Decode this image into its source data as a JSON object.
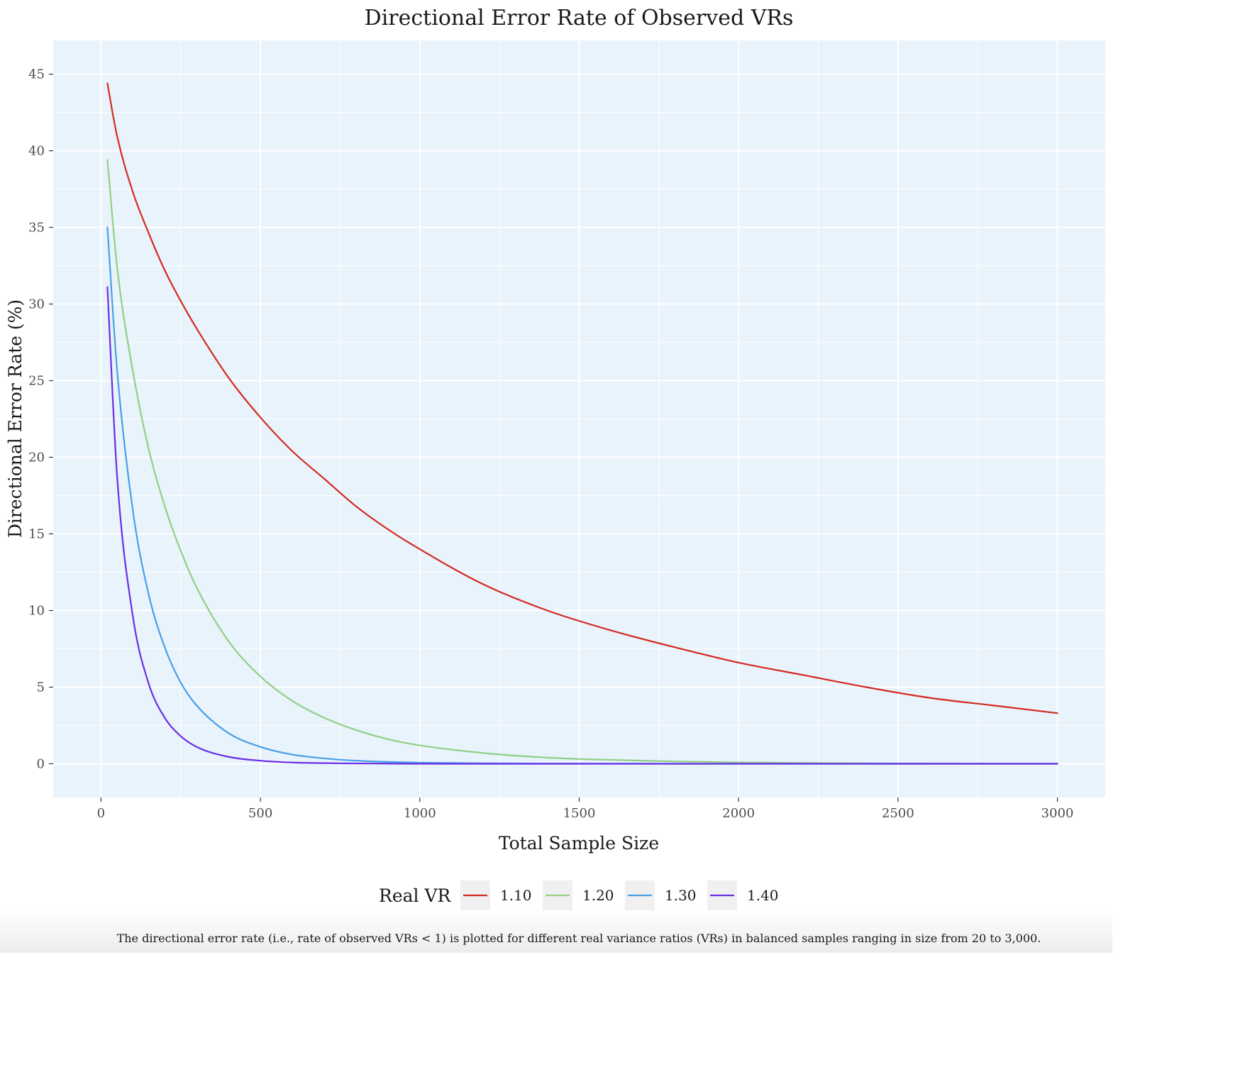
{
  "chart_data": {
    "type": "line",
    "title": "Directional Error Rate of Observed VRs",
    "xlabel": "Total Sample Size",
    "ylabel": "Directional Error Rate (%)",
    "xlim": [
      -150,
      3150
    ],
    "ylim": [
      -2.2,
      47.2
    ],
    "x_ticks": [
      0,
      500,
      1000,
      1500,
      2000,
      2500,
      3000
    ],
    "x_tick_labels": [
      "0",
      "500",
      "1000",
      "1500",
      "2000",
      "2500",
      "3000"
    ],
    "y_ticks": [
      0,
      5,
      10,
      15,
      20,
      25,
      30,
      35,
      40,
      45
    ],
    "y_tick_labels": [
      "0",
      "5",
      "10",
      "15",
      "20",
      "25",
      "30",
      "35",
      "40",
      "45"
    ],
    "grid": true,
    "legend": {
      "title": "Real VR",
      "placement": "bottom"
    },
    "x": [
      20,
      50,
      100,
      150,
      200,
      250,
      300,
      400,
      500,
      600,
      700,
      800,
      900,
      1000,
      1200,
      1400,
      1600,
      1800,
      2000,
      2200,
      2400,
      2600,
      2800,
      3000
    ],
    "series": [
      {
        "name": "1.10",
        "color": "#d42a1f",
        "values": [
          44.4,
          41.0,
          37.3,
          34.6,
          32.2,
          30.2,
          28.4,
          25.2,
          22.6,
          20.4,
          18.6,
          16.8,
          15.3,
          14.0,
          11.7,
          10.0,
          8.7,
          7.6,
          6.6,
          5.8,
          5.0,
          4.3,
          3.8,
          3.3
        ]
      },
      {
        "name": "1.20",
        "color": "#92cf84",
        "values": [
          39.4,
          32.5,
          25.6,
          20.5,
          16.8,
          13.9,
          11.5,
          8.0,
          5.7,
          4.1,
          3.0,
          2.2,
          1.6,
          1.2,
          0.7,
          0.4,
          0.25,
          0.15,
          0.09,
          0.05,
          0.03,
          0.02,
          0.01,
          0.01
        ]
      },
      {
        "name": "1.30",
        "color": "#4a9ee6",
        "values": [
          35.0,
          25.8,
          16.5,
          11.0,
          7.6,
          5.3,
          3.8,
          2.0,
          1.1,
          0.6,
          0.35,
          0.2,
          0.12,
          0.07,
          0.03,
          0.01,
          0.005,
          0,
          0,
          0,
          0,
          0,
          0,
          0
        ]
      },
      {
        "name": "1.40",
        "color": "#6a2ee6",
        "values": [
          31.1,
          18.9,
          9.6,
          5.2,
          3.0,
          1.8,
          1.1,
          0.45,
          0.2,
          0.08,
          0.04,
          0.02,
          0.01,
          0,
          0,
          0,
          0,
          0,
          0,
          0,
          0,
          0,
          0,
          0
        ]
      }
    ],
    "caption": "The directional error rate (i.e., rate of observed VRs < 1) is plotted for different real variance ratios (VRs) in balanced samples ranging in size from 20 to 3,000.",
    "colors": {
      "panel_background": "#e8f3fc",
      "gridline": "#ffffff",
      "legend_key_background": "#f0f0f0"
    }
  }
}
